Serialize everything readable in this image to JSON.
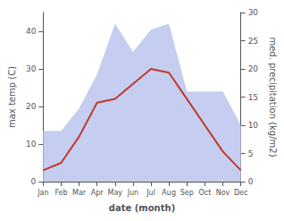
{
  "chart_data": {
    "type": "line",
    "xlabel": "date (month)",
    "ylabel": "max temp (C)",
    "y2label": "med. precipitation (kg/m2)",
    "categories": [
      "Jan",
      "Feb",
      "Mar",
      "Apr",
      "May",
      "Jun",
      "Jul",
      "Aug",
      "Sep",
      "Oct",
      "Nov",
      "Dec"
    ],
    "series": [
      {
        "type": "line",
        "color": "#c0392b",
        "values": [
          3,
          5,
          12,
          21,
          22,
          26,
          30,
          29,
          22,
          15,
          8,
          3
        ]
      },
      {
        "type": "area",
        "axis": "y2",
        "color": "#c5cef0",
        "values": [
          9,
          9,
          13,
          19,
          28,
          23,
          27,
          28,
          16,
          16,
          16,
          10
        ]
      }
    ],
    "ylim": [
      0,
      45
    ],
    "yticks": [
      0,
      10,
      20,
      30,
      40
    ],
    "y2lim": [
      0,
      30
    ],
    "y2ticks": [
      0,
      5,
      10,
      15,
      20,
      25,
      30
    ],
    "grid": false
  }
}
